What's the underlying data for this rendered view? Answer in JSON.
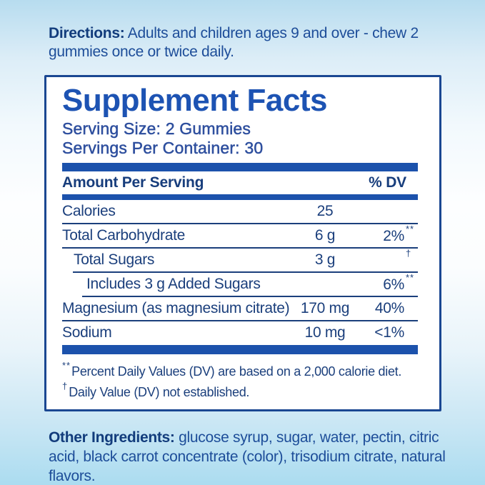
{
  "colors": {
    "royal_blue_accent": "#1d53b3",
    "navy_text": "#1b3f7c",
    "serving_text_blue": "#2e4f9e",
    "panel_border_blue": "#1a4792",
    "bar_blue": "#1c52ac",
    "background_top": "#b7dcef",
    "background_middle": "#fdfeff",
    "background_bottom": "#abdcf0",
    "panel_background": "#ffffff"
  },
  "directions": {
    "label": "Directions:",
    "text": "Adults and children ages 9 and over - chew 2 gummies once or twice daily."
  },
  "panel": {
    "title": "Supplement Facts",
    "serving_size": "Serving Size: 2 Gummies",
    "servings_per_container": "Servings Per Container: 30",
    "header": {
      "amount_label": "Amount Per Serving",
      "dv_label": "% DV"
    },
    "rows": [
      {
        "name": "Calories",
        "amount": "25",
        "dv": "",
        "dv_mark": "",
        "indent": 0
      },
      {
        "name": "Total Carbohydrate",
        "amount": "6 g",
        "dv": "2%",
        "dv_mark": "**",
        "indent": 0
      },
      {
        "name": "Total Sugars",
        "amount": "3 g",
        "dv": "",
        "dv_mark": "†",
        "indent": 1
      },
      {
        "name": "Includes 3 g Added Sugars",
        "amount": "",
        "dv": "6%",
        "dv_mark": "**",
        "indent": 2
      },
      {
        "name": "Magnesium (as magnesium citrate)",
        "amount": "170 mg",
        "dv": "40%",
        "dv_mark": "",
        "indent": 0
      },
      {
        "name": "Sodium",
        "amount": "10 mg",
        "dv": "<1%",
        "dv_mark": "",
        "indent": 0
      }
    ],
    "footnotes": [
      {
        "mark": "**",
        "text": "Percent Daily Values (DV) are based on a 2,000 calorie diet."
      },
      {
        "mark": "†",
        "text": "Daily Value (DV) not established."
      }
    ]
  },
  "other_ingredients": {
    "label": "Other Ingredients:",
    "text": "glucose syrup, sugar, water, pectin, citric acid, black carrot concentrate (color), trisodium citrate, natural flavors."
  }
}
